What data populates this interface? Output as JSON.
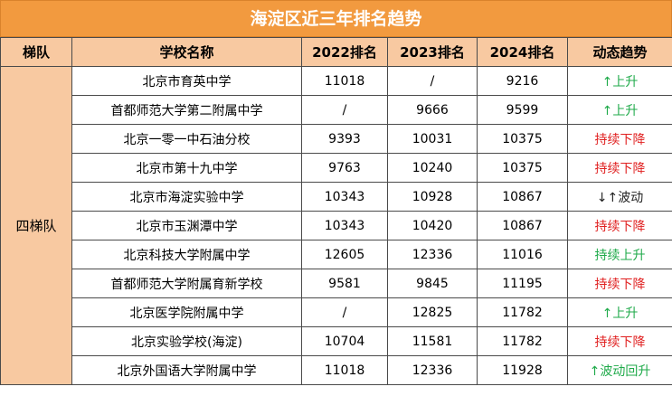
{
  "title": "海淀区近三年排名趋势",
  "headers": [
    "梯队",
    "学校名称",
    "2022排名",
    "2023排名",
    "2024排名",
    "动态趋势"
  ],
  "tier": "四梯队",
  "rows": [
    {
      "school": "北京市育英中学",
      "r2022": "11018",
      "r2023": "/",
      "r2024": "9216",
      "trend": "↑上升",
      "trend_color": "#1faa4a"
    },
    {
      "school": "首都师范大学第二附属中学",
      "r2022": "/",
      "r2023": "9666",
      "r2024": "9599",
      "trend": "↑上升",
      "trend_color": "#1faa4a"
    },
    {
      "school": "北京一零一中石油分校",
      "r2022": "9393",
      "r2023": "10031",
      "r2024": "10375",
      "trend": "持续下降",
      "trend_color": "#e02020"
    },
    {
      "school": "北京市第十九中学",
      "r2022": "9763",
      "r2023": "10240",
      "r2024": "10375",
      "trend": "持续下降",
      "trend_color": "#e02020"
    },
    {
      "school": "北京市海淀实验中学",
      "r2022": "10343",
      "r2023": "10928",
      "r2024": "10867",
      "trend": "↓↑波动",
      "trend_color": "#222222"
    },
    {
      "school": "北京市玉渊潭中学",
      "r2022": "10343",
      "r2023": "10420",
      "r2024": "10867",
      "trend": "持续下降",
      "trend_color": "#e02020"
    },
    {
      "school": "北京科技大学附属中学",
      "r2022": "12605",
      "r2023": "12336",
      "r2024": "11016",
      "trend": "持续上升",
      "trend_color": "#1faa4a"
    },
    {
      "school": "首都师范大学附属育新学校",
      "r2022": "9581",
      "r2023": "9845",
      "r2024": "11195",
      "trend": "持续下降",
      "trend_color": "#e02020"
    },
    {
      "school": "北京医学院附属中学",
      "r2022": "/",
      "r2023": "12825",
      "r2024": "11782",
      "trend": "↑上升",
      "trend_color": "#1faa4a"
    },
    {
      "school": "北京实验学校(海淀)",
      "r2022": "10704",
      "r2023": "11581",
      "r2024": "11782",
      "trend": "持续下降",
      "trend_color": "#e02020"
    },
    {
      "school": "北京外国语大学附属中学",
      "r2022": "11018",
      "r2023": "12336",
      "r2024": "11928",
      "trend": "↑波动回升",
      "trend_color": "#1faa4a"
    }
  ]
}
